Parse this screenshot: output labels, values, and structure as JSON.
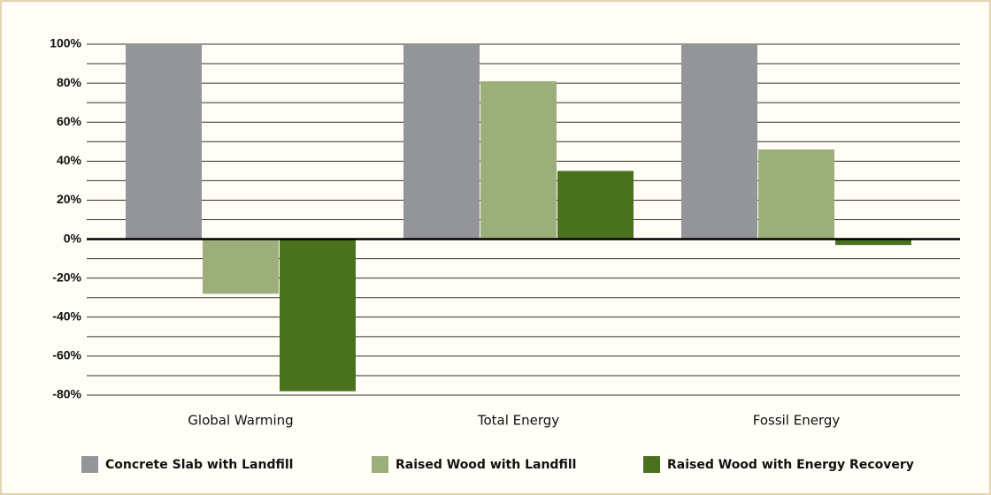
{
  "chart_data": {
    "type": "bar",
    "categories": [
      "Global Warming",
      "Total Energy",
      "Fossil Energy"
    ],
    "series": [
      {
        "name": "Concrete Slab with Landfill",
        "color": "#939598",
        "values": [
          100,
          100,
          100
        ]
      },
      {
        "name": "Raised Wood with Landfill",
        "color": "#9caf7a",
        "values": [
          -28,
          81,
          46
        ]
      },
      {
        "name": "Raised Wood with Energy Recovery",
        "color": "#4a721e",
        "values": [
          -78,
          35,
          -3
        ]
      }
    ],
    "ylim": [
      -80,
      100
    ],
    "yticks": [
      {
        "value": 100,
        "label": "100%"
      },
      {
        "value": 80,
        "label": "80%"
      },
      {
        "value": 60,
        "label": "60%"
      },
      {
        "value": 40,
        "label": "40%"
      },
      {
        "value": 20,
        "label": "20%"
      },
      {
        "value": 0,
        "label": "0%"
      },
      {
        "value": -20,
        "label": "-20%"
      },
      {
        "value": -40,
        "label": "-40%"
      },
      {
        "value": -60,
        "label": "-60%"
      },
      {
        "value": -80,
        "label": "-80%"
      }
    ],
    "minor_yticks": [
      90,
      70,
      50,
      30,
      10,
      -10,
      -30,
      -50,
      -70
    ],
    "grid": true,
    "legend": "bottom"
  }
}
